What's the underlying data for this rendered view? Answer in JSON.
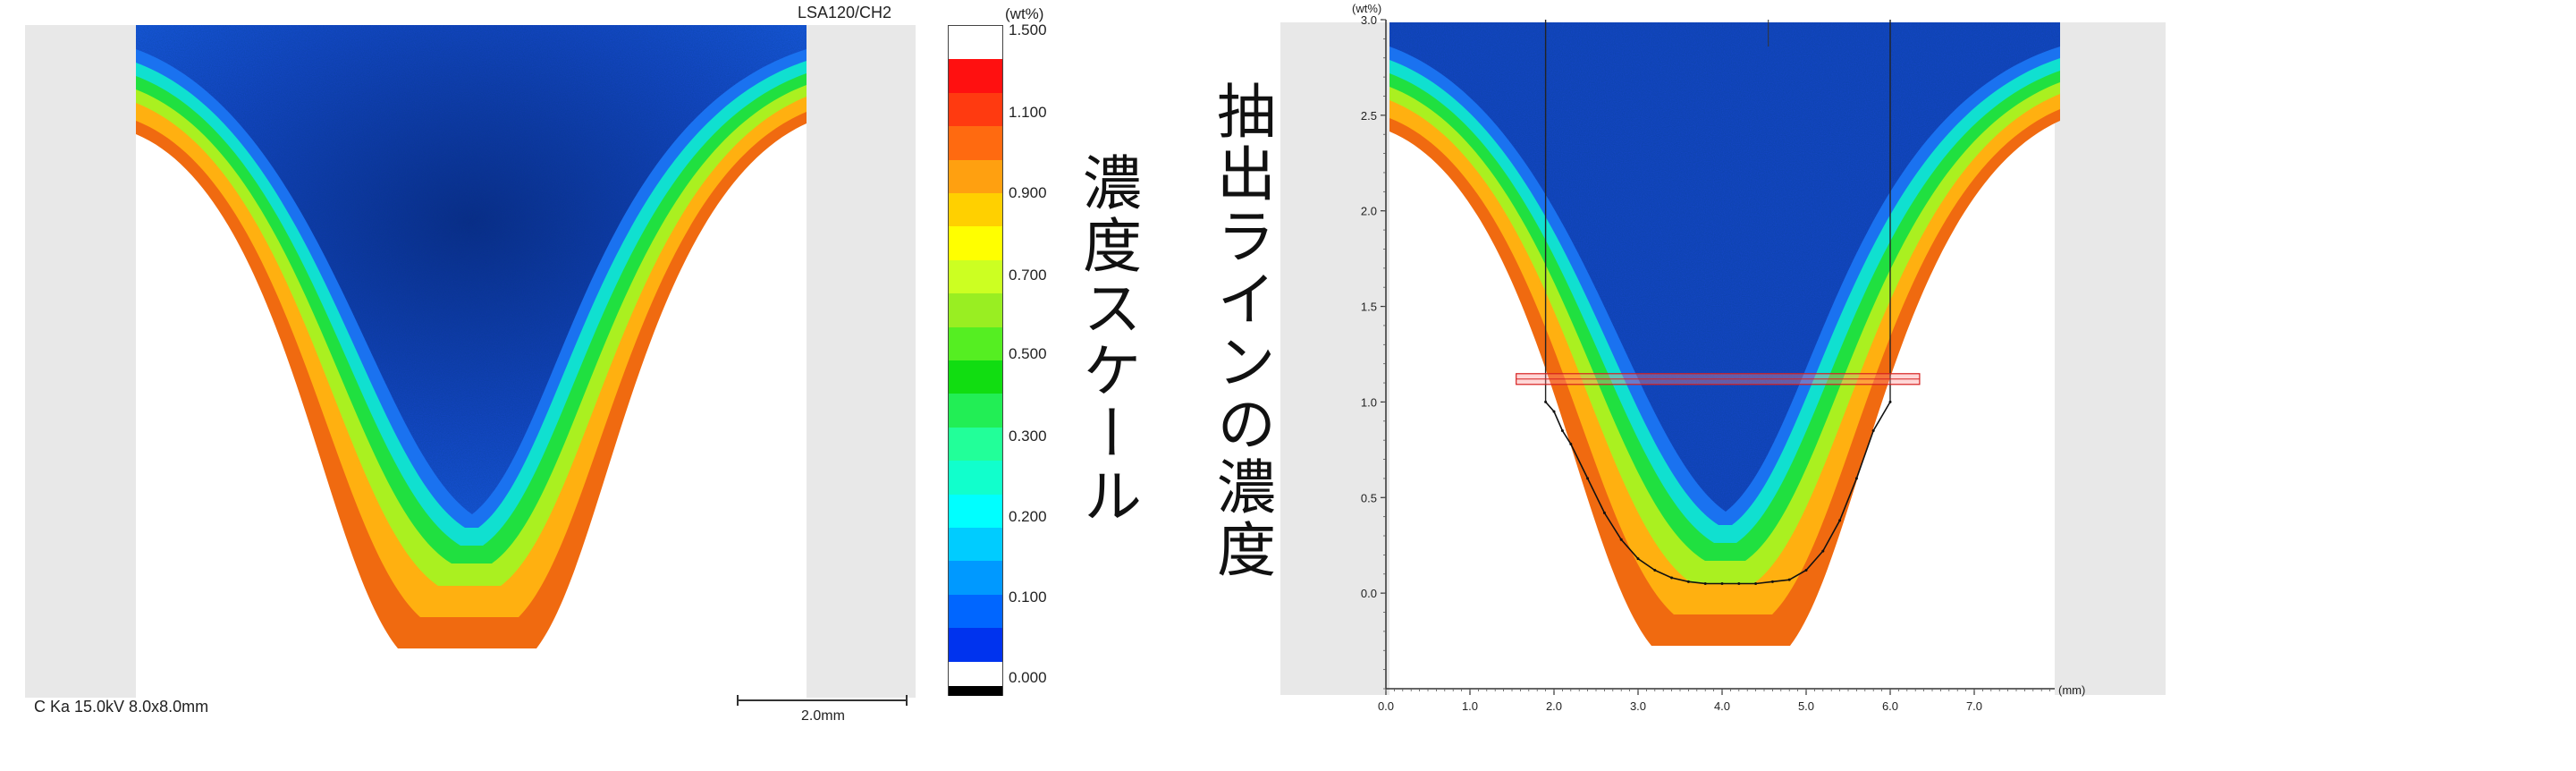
{
  "left_map": {
    "title": "LSA120/CH2",
    "condition": "C Ka 15.0kV 8.0x8.0mm",
    "scalebar_label": "2.0mm"
  },
  "color_scale": {
    "unit": "(wt%)",
    "ticks": [
      "1.500",
      "1.100",
      "0.900",
      "0.700",
      "0.500",
      "0.300",
      "0.200",
      "0.100",
      "0.000"
    ],
    "colors": [
      "#ffffff",
      "#ff1010",
      "#ff3a10",
      "#ff6a10",
      "#ffa010",
      "#ffd000",
      "#ffff00",
      "#ccff22",
      "#99ee22",
      "#55ee22",
      "#11dd11",
      "#22ee55",
      "#22ff99",
      "#11ffcc",
      "#00ffff",
      "#00ccff",
      "#0099ff",
      "#0066ff",
      "#0033ee",
      "#000000"
    ]
  },
  "labels": {
    "scale_title": "濃度スケール",
    "line_title": "抽出ラインの濃度"
  },
  "chart_data": {
    "type": "line",
    "title": "",
    "ylabel": "(wt%)",
    "xlabel": "(mm)",
    "xlim": [
      0,
      8.0
    ],
    "ylim": [
      -0.5,
      3.0
    ],
    "x_ticks": [
      "0.0",
      "1.0",
      "2.0",
      "3.0",
      "4.0",
      "5.0",
      "6.0",
      "7.0"
    ],
    "y_ticks": [
      "3.0",
      "2.5",
      "2.0",
      "1.5",
      "1.0",
      "0.5",
      "0.0"
    ],
    "grid": false,
    "series": [
      {
        "x": [
          1.9,
          2.0,
          2.1,
          2.2,
          2.4,
          2.6,
          2.8,
          3.0,
          3.2,
          3.4,
          3.6,
          3.8,
          4.0,
          4.2,
          4.4,
          4.6,
          4.8,
          5.0,
          5.2,
          5.4,
          5.6,
          5.8,
          6.0
        ],
        "values": [
          1.0,
          0.95,
          0.85,
          0.78,
          0.6,
          0.42,
          0.28,
          0.18,
          0.12,
          0.08,
          0.06,
          0.05,
          0.05,
          0.05,
          0.05,
          0.06,
          0.07,
          0.12,
          0.22,
          0.38,
          0.6,
          0.85,
          1.0
        ]
      }
    ],
    "extraction_band_y": 1.12
  }
}
